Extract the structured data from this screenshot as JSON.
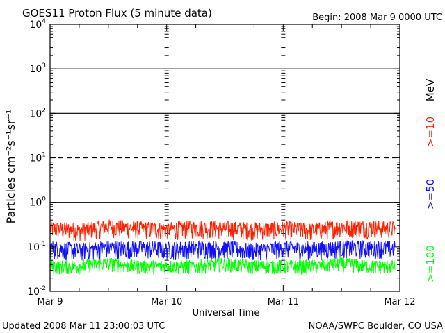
{
  "title": "GOES11 Proton Flux (5 minute data)",
  "begin": "Begin: 2008 Mar 9 0000 UTC",
  "updated": "Updated 2008 Mar 11 23:00:03 UTC",
  "credit": "NOAA/SWPC Boulder, CO USA",
  "colors": {
    "ge10": "#ff2000",
    "ge50": "#1010ff",
    "ge100": "#00ff00",
    "axis": "#000000"
  },
  "chart_data": {
    "type": "line",
    "title": "GOES11 Proton Flux (5 minute data)",
    "xlabel": "Universal Time",
    "ylabel": "Particles cm⁻²s⁻¹sr⁻¹",
    "y_scale": "log",
    "ylim": [
      0.01,
      10000
    ],
    "xlim": [
      "2008-03-09T00:00Z",
      "2008-03-12T00:00Z"
    ],
    "x_ticks": [
      "Mar 9",
      "Mar 10",
      "Mar 11",
      "Mar 12"
    ],
    "y_ticks": [
      {
        "base": "10",
        "exp": "-2"
      },
      {
        "base": "10",
        "exp": "-1"
      },
      {
        "base": "10",
        "exp": "0"
      },
      {
        "base": "10",
        "exp": "1"
      },
      {
        "base": "10",
        "exp": "2"
      },
      {
        "base": "10",
        "exp": "3"
      },
      {
        "base": "10",
        "exp": "4"
      }
    ],
    "reference_lines": [
      {
        "y": 1,
        "style": "solid"
      },
      {
        "y": 10,
        "style": "dashed"
      },
      {
        "y": 100,
        "style": "solid"
      },
      {
        "y": 1000,
        "style": "solid"
      }
    ],
    "grid": false,
    "legend_placement": "right, vertical",
    "legend_unit": "MeV",
    "legend_note": "energy thresholds in MeV",
    "series": [
      {
        "name": ">=10",
        "color": "#ff2000",
        "x": [
          "2008-03-09T00:00Z",
          "2008-03-09T06:00Z",
          "2008-03-09T12:00Z",
          "2008-03-09T18:00Z",
          "2008-03-10T00:00Z",
          "2008-03-10T06:00Z",
          "2008-03-10T12:00Z",
          "2008-03-10T18:00Z",
          "2008-03-11T00:00Z",
          "2008-03-11T06:00Z",
          "2008-03-11T12:00Z",
          "2008-03-11T18:00Z",
          "2008-03-11T23:00Z"
        ],
        "values": [
          0.2,
          0.18,
          0.22,
          0.2,
          0.19,
          0.21,
          0.2,
          0.19,
          0.2,
          0.18,
          0.22,
          0.21,
          0.2
        ]
      },
      {
        "name": ">=50",
        "color": "#1010ff",
        "x": [
          "2008-03-09T00:00Z",
          "2008-03-09T06:00Z",
          "2008-03-09T12:00Z",
          "2008-03-09T18:00Z",
          "2008-03-10T00:00Z",
          "2008-03-10T06:00Z",
          "2008-03-10T12:00Z",
          "2008-03-10T18:00Z",
          "2008-03-11T00:00Z",
          "2008-03-11T06:00Z",
          "2008-03-11T12:00Z",
          "2008-03-11T18:00Z",
          "2008-03-11T23:00Z"
        ],
        "values": [
          0.08,
          0.07,
          0.08,
          0.08,
          0.075,
          0.08,
          0.08,
          0.07,
          0.08,
          0.075,
          0.08,
          0.08,
          0.08
        ]
      },
      {
        "name": ">=100",
        "color": "#00ff00",
        "x": [
          "2008-03-09T00:00Z",
          "2008-03-09T06:00Z",
          "2008-03-09T12:00Z",
          "2008-03-09T18:00Z",
          "2008-03-10T00:00Z",
          "2008-03-10T06:00Z",
          "2008-03-10T12:00Z",
          "2008-03-10T18:00Z",
          "2008-03-11T00:00Z",
          "2008-03-11T06:00Z",
          "2008-03-11T12:00Z",
          "2008-03-11T18:00Z",
          "2008-03-11T23:00Z"
        ],
        "values": [
          0.035,
          0.035,
          0.04,
          0.035,
          0.035,
          0.035,
          0.04,
          0.035,
          0.035,
          0.035,
          0.04,
          0.035,
          0.035
        ]
      }
    ]
  }
}
